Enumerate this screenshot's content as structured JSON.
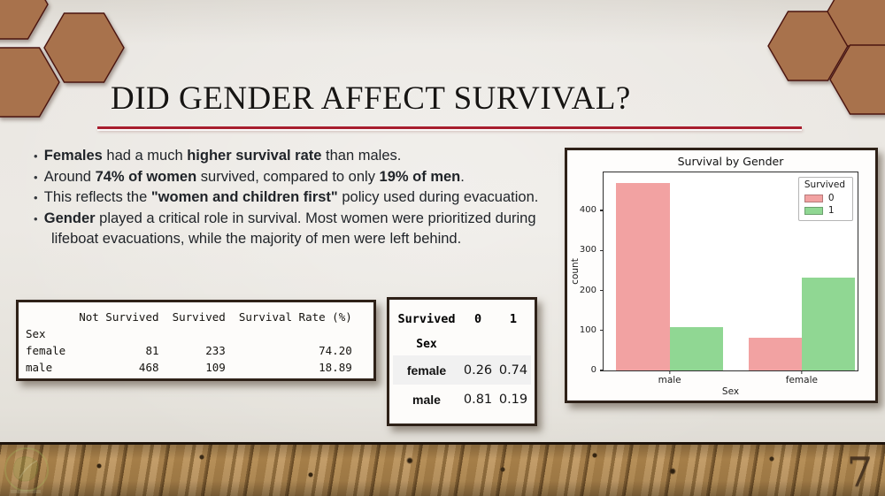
{
  "slide": {
    "title": "DID GENDER AFFECT SURVIVAL?",
    "page_number": "7",
    "colors": {
      "accent_red": "#a81e2e",
      "hexagon_brown": "#a8724c",
      "background": "#e9e6e0",
      "panel_border": "#2e2118",
      "bar_not_survived": "#f2a2a2",
      "bar_survived": "#90d793"
    }
  },
  "bullets": [
    {
      "segments": [
        {
          "text": "Females",
          "bold": true
        },
        {
          "text": " had a much ",
          "bold": false
        },
        {
          "text": "higher survival rate",
          "bold": true
        },
        {
          "text": " than males.",
          "bold": false
        }
      ]
    },
    {
      "segments": [
        {
          "text": "Around ",
          "bold": false
        },
        {
          "text": "74% of women",
          "bold": true
        },
        {
          "text": " survived, compared to only ",
          "bold": false
        },
        {
          "text": "19% of men",
          "bold": true
        },
        {
          "text": ".",
          "bold": false
        }
      ]
    },
    {
      "segments": [
        {
          "text": "This reflects the ",
          "bold": false
        },
        {
          "text": "\"women and children first\"",
          "bold": true
        },
        {
          "text": " policy used during evacuation.",
          "bold": false
        }
      ]
    },
    {
      "segments": [
        {
          "text": "Gender",
          "bold": true
        },
        {
          "text": " played a critical role in survival. Most women were prioritized during lifeboat evacuations, while the majority of men were left behind.",
          "bold": false
        }
      ]
    }
  ],
  "summary_table": {
    "lines": [
      "        Not Survived  Survived  Survival Rate (%)",
      "Sex",
      "female            81       233              74.20",
      "male             468       109              18.89"
    ]
  },
  "crosstab": {
    "col_header_label": "Survived",
    "col_headers": [
      "0",
      "1"
    ],
    "index_label": "Sex",
    "rows": [
      {
        "label": "female",
        "values": [
          "0.26",
          "0.74"
        ]
      },
      {
        "label": "male",
        "values": [
          "0.81",
          "0.19"
        ]
      }
    ]
  },
  "chart_data": {
    "type": "bar",
    "title": "Survival by Gender",
    "xlabel": "Sex",
    "ylabel": "count",
    "categories": [
      "male",
      "female"
    ],
    "series": [
      {
        "name": "0",
        "color": "#f2a2a2",
        "values": [
          468,
          81
        ]
      },
      {
        "name": "1",
        "color": "#90d793",
        "values": [
          109,
          233
        ]
      }
    ],
    "legend_title": "Survived",
    "legend_position": "upper right",
    "ylim": [
      0,
      495
    ],
    "yticks": [
      0,
      100,
      200,
      300,
      400
    ],
    "grid": false
  }
}
